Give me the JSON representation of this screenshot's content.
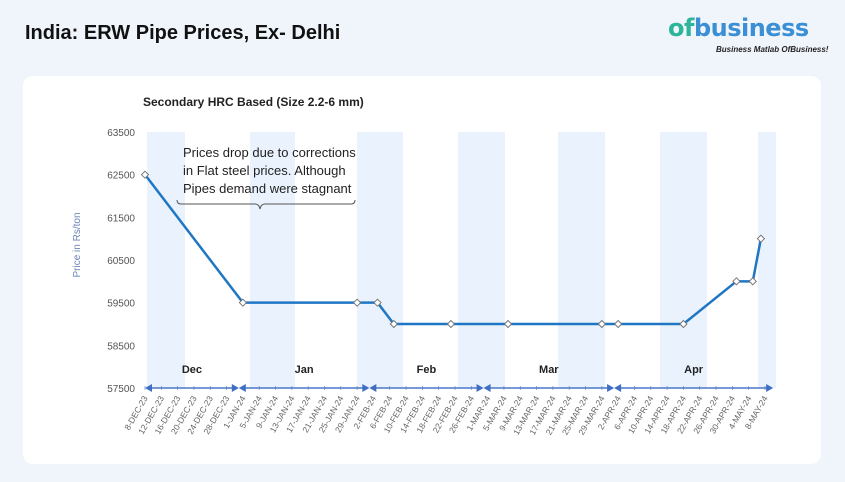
{
  "header": {
    "title": "India: ERW Pipe Prices, Ex- Delhi"
  },
  "logo": {
    "word": "ofbusiness",
    "tagline": "Business Matlab OfBusiness!"
  },
  "chart_data": {
    "type": "line",
    "title": "Secondary HRC Based (Size 2.2-6 mm)",
    "ylabel": "Price in Rs/ton",
    "ylim": [
      57500,
      63500
    ],
    "yticks": [
      57500,
      58500,
      59500,
      60500,
      61500,
      62500,
      63500
    ],
    "xticks": [
      "8-DEC-23",
      "12-DEC-23",
      "16-DEC-23",
      "20-DEC-23",
      "24-DEC-23",
      "28-DEC-23",
      "1-JAN-24",
      "5-JAN-24",
      "9-JAN-24",
      "13-JAN-24",
      "17-JAN-24",
      "21-JAN-24",
      "25-JAN-24",
      "29-JAN-24",
      "2-FEB-24",
      "6-FEB-24",
      "10-FEB-24",
      "14-FEB-24",
      "18-FEB-24",
      "22-FEB-24",
      "26-FEB-24",
      "1-MAR-24",
      "5-MAR-24",
      "9-MAR-24",
      "13-MAR-24",
      "17-MAR-24",
      "21-MAR-24",
      "25-MAR-24",
      "29-MAR-24",
      "2-APR-24",
      "6-APR-24",
      "10-APR-24",
      "14-APR-24",
      "18-APR-24",
      "22-APR-24",
      "26-APR-24",
      "30-APR-24",
      "4-MAY-24",
      "8-MAY-24"
    ],
    "xrange": [
      "2023-12-08",
      "2024-05-08"
    ],
    "series": [
      {
        "color": "#1f77c4",
        "points": [
          {
            "x": "2023-12-08",
            "y": 62500
          },
          {
            "x": "2024-01-01",
            "y": 59500
          },
          {
            "x": "2024-01-29",
            "y": 59500
          },
          {
            "x": "2024-02-03",
            "y": 59500
          },
          {
            "x": "2024-02-07",
            "y": 59000
          },
          {
            "x": "2024-02-21",
            "y": 59000
          },
          {
            "x": "2024-03-06",
            "y": 59000
          },
          {
            "x": "2024-03-29",
            "y": 59000
          },
          {
            "x": "2024-04-02",
            "y": 59000
          },
          {
            "x": "2024-04-18",
            "y": 59000
          },
          {
            "x": "2024-05-01",
            "y": 60000
          },
          {
            "x": "2024-05-05",
            "y": 60000
          },
          {
            "x": "2024-05-07",
            "y": 61000
          }
        ]
      }
    ],
    "months": [
      {
        "label": "Dec",
        "from": "2023-12-08",
        "to": "2023-12-31"
      },
      {
        "label": "Jan",
        "from": "2023-12-31",
        "to": "2024-02-01"
      },
      {
        "label": "Feb",
        "from": "2024-02-01",
        "to": "2024-02-29"
      },
      {
        "label": "Mar",
        "from": "2024-02-29",
        "to": "2024-04-01"
      },
      {
        "label": "Apr",
        "from": "2024-04-01",
        "to": "2024-05-10"
      }
    ],
    "annotation": [
      "Prices drop due to corrections",
      "in Flat steel prices. Although",
      "Pipes demand were stagnant"
    ],
    "grid": false,
    "band_color": "#eaf3fd"
  }
}
